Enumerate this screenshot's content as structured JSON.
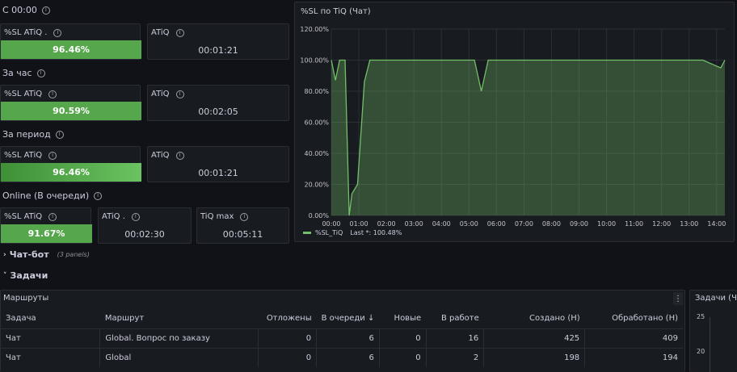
{
  "top": {
    "section_c0000": "С 00:00",
    "section_hour": "За час",
    "section_period": "За период",
    "section_online": "Online (В очереди)"
  },
  "stats": {
    "c0000": {
      "sl_title": "%SL ATiQ .",
      "sl_value": "96.46%",
      "sl_fraction": 0.9646,
      "atiq_title": "ATiQ",
      "atiq_value": "00:01:21"
    },
    "hour": {
      "sl_title": "%SL ATiQ",
      "sl_value": "90.59%",
      "sl_fraction": 0.9059,
      "atiq_title": "ATiQ",
      "atiq_value": "00:02:05"
    },
    "period": {
      "sl_title": "%SL ATiQ",
      "sl_value": "96.46%",
      "sl_fraction": 0.9646,
      "atiq_title": "ATiQ",
      "atiq_value": "00:01:21"
    },
    "online": {
      "sl_title": "%SL ATiQ",
      "sl_value": "91.67%",
      "sl_fraction": 0.9167,
      "atiq_title": "ATiQ .",
      "atiq_value": "00:02:30",
      "tiq_title": "TiQ max",
      "tiq_value": "00:05:11"
    }
  },
  "chart_panel": {
    "title": "%SL по TiQ (Чат)"
  },
  "chart_data": {
    "type": "area",
    "title": "%SL по TiQ (Чат)",
    "y_ticks": [
      "0.00%",
      "20.00%",
      "40.00%",
      "60.00%",
      "80.00%",
      "100.00%",
      "120.00%"
    ],
    "x_ticks": [
      "00:00",
      "01:00",
      "02:00",
      "03:00",
      "04:00",
      "05:00",
      "06:00",
      "07:00",
      "08:00",
      "09:00",
      "10:00",
      "11:00",
      "12:00",
      "13:00",
      "14:00"
    ],
    "ylim": [
      0,
      120
    ],
    "xlim_hours": [
      0,
      14.3
    ],
    "grid": true,
    "legend": "bottom-left",
    "series": [
      {
        "name": "%SL_TiQ",
        "legend_text": "%SL_TiQ",
        "legend_stat": "Last *: 100.48%",
        "color": "#73bf69",
        "x": [
          0,
          0.15,
          0.3,
          0.5,
          0.65,
          0.75,
          0.95,
          1.2,
          1.4,
          1.6,
          5.2,
          5.45,
          5.7,
          13.5,
          14.15,
          14.3
        ],
        "values": [
          100,
          87,
          100,
          100,
          0,
          14,
          20,
          86,
          100,
          100,
          100,
          80,
          100,
          100,
          95,
          100
        ]
      }
    ]
  },
  "chatbot": {
    "title": "Чат-бот",
    "count": "(3 panels)"
  },
  "tasks": {
    "title": "Задачи"
  },
  "routes": {
    "title": "Маршруты",
    "columns": [
      "Задача",
      "Маршрут",
      "Отложены",
      "В очереди",
      "Новые",
      "В работе",
      "Создано (Н)",
      "Обработано (Н)"
    ],
    "rows": [
      [
        "Чат",
        "Global. Вопрос по заказу",
        "0",
        "6",
        "0",
        "16",
        "425",
        "409"
      ],
      [
        "Чат",
        "Global",
        "0",
        "6",
        "0",
        "2",
        "198",
        "194"
      ]
    ]
  },
  "tasks_chart": {
    "title": "Задачи (Ча",
    "y_ticks": [
      "25",
      "20"
    ]
  },
  "colors": {
    "accent_green": "#73bf69",
    "bar_green": "#56a64b",
    "background": "#111217",
    "panel": "#181b1f"
  }
}
